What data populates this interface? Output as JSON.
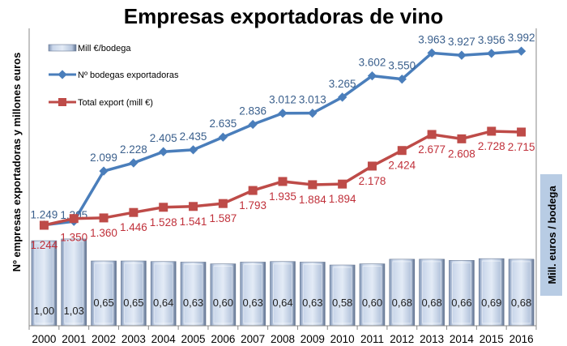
{
  "chart_data": {
    "type": "bar",
    "title": "Empresas exportadoras de vino",
    "ylabel": "Nº empresas exportadoras y millones euros",
    "ylabel_right": "Mill. euros / bodega",
    "categories": [
      "2000",
      "2001",
      "2002",
      "2003",
      "2004",
      "2005",
      "2006",
      "2007",
      "2008",
      "2009",
      "2010",
      "2011",
      "2012",
      "2013",
      "2014",
      "2015",
      "2016"
    ],
    "legend_position": "top-left",
    "grid": false,
    "series": [
      {
        "name": "Mill €/bodega",
        "type": "bar",
        "axis": "right",
        "color": "#b8cce4",
        "values": [
          1.0,
          1.03,
          0.65,
          0.65,
          0.64,
          0.63,
          0.6,
          0.63,
          0.64,
          0.63,
          0.58,
          0.6,
          0.68,
          0.68,
          0.66,
          0.69,
          0.68
        ],
        "labels": [
          "1,00",
          "1,03",
          "0,65",
          "0,65",
          "0,64",
          "0,63",
          "0,60",
          "0,63",
          "0,64",
          "0,63",
          "0,58",
          "0,60",
          "0,68",
          "0,68",
          "0,66",
          "0,69",
          "0,68"
        ]
      },
      {
        "name": "Nº bodegas exportadoras",
        "type": "line",
        "axis": "left",
        "color": "#4a7ebb",
        "values": [
          1249,
          1305,
          2099,
          2228,
          2405,
          2435,
          2635,
          2836,
          3012,
          3013,
          3265,
          3602,
          3550,
          3963,
          3927,
          3956,
          3992
        ],
        "labels": [
          "1.249",
          "1.305",
          "2.099",
          "2.228",
          "2.405",
          "2.435",
          "2.635",
          "2.836",
          "3.012",
          "3.013",
          "3.265",
          "3.602",
          "3.550",
          "3.963",
          "3.927",
          "3.956",
          "3.992"
        ]
      },
      {
        "name": "Total export (mill €)",
        "type": "line",
        "axis": "left",
        "color": "#be4b48",
        "values": [
          1244,
          1350,
          1360,
          1446,
          1528,
          1541,
          1587,
          1793,
          1935,
          1884,
          1894,
          2178,
          2424,
          2677,
          2608,
          2728,
          2715
        ],
        "labels": [
          "1.244",
          "1.350",
          "1.360",
          "1.446",
          "1.528",
          "1.541",
          "1.587",
          "1.793",
          "1.935",
          "1.884",
          "1.894",
          "2.178",
          "2.424",
          "2.677",
          "2.608",
          "2.728",
          "2.715"
        ]
      }
    ]
  }
}
